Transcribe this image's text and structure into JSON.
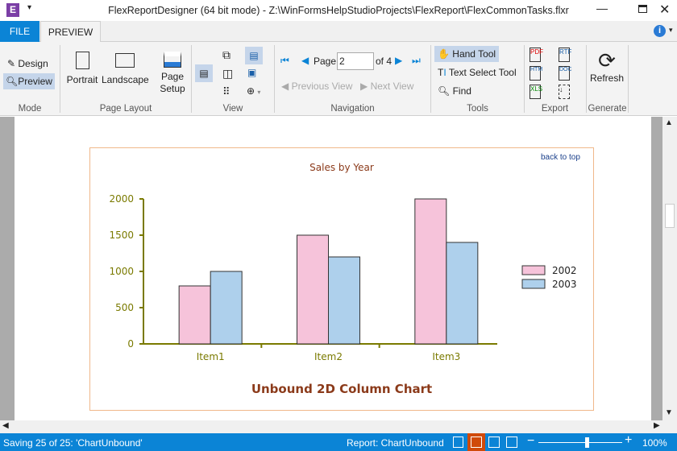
{
  "window": {
    "title": "FlexReportDesigner (64 bit mode) - Z:\\WinFormsHelpStudioProjects\\FlexReport\\FlexCommonTasks.flxr"
  },
  "tabs": [
    {
      "label": "FILE"
    },
    {
      "label": "PREVIEW"
    }
  ],
  "ribbon": {
    "mode": {
      "label": "Mode",
      "design": "Design",
      "preview": "Preview"
    },
    "page_layout": {
      "label": "Page Layout",
      "portrait": "Portrait",
      "landscape": "Landscape",
      "page_setup": "Page Setup"
    },
    "view": {
      "label": "View"
    },
    "navigation": {
      "label": "Navigation",
      "page_label": "Page",
      "page_value": "2",
      "of_label": "of 4",
      "previous_view": "Previous View",
      "next_view": "Next View"
    },
    "tools": {
      "label": "Tools",
      "hand": "Hand Tool",
      "text_select": "Text Select Tool",
      "find": "Find"
    },
    "export": {
      "label": "Export"
    },
    "generate": {
      "label": "Generate",
      "refresh": "Refresh"
    }
  },
  "report": {
    "back_to_top": "back to top",
    "footer_title": "Unbound 2D Column Chart"
  },
  "chart_data": {
    "type": "bar",
    "title": "Sales by Year",
    "categories": [
      "Item1",
      "Item2",
      "Item3"
    ],
    "series": [
      {
        "name": "2002",
        "values": [
          800,
          1500,
          2000
        ],
        "color": "#f6c3da"
      },
      {
        "name": "2003",
        "values": [
          1000,
          1200,
          1400
        ],
        "color": "#aed0ec"
      }
    ],
    "yticks": [
      0,
      500,
      1000,
      1500,
      2000
    ],
    "ylim": [
      0,
      2000
    ],
    "legend": "right",
    "grid": false
  },
  "status": {
    "left": "Saving 25 of 25: 'ChartUnbound'",
    "report": "Report: ChartUnbound",
    "zoom": "100%",
    "zoom_fraction": 0.58
  }
}
